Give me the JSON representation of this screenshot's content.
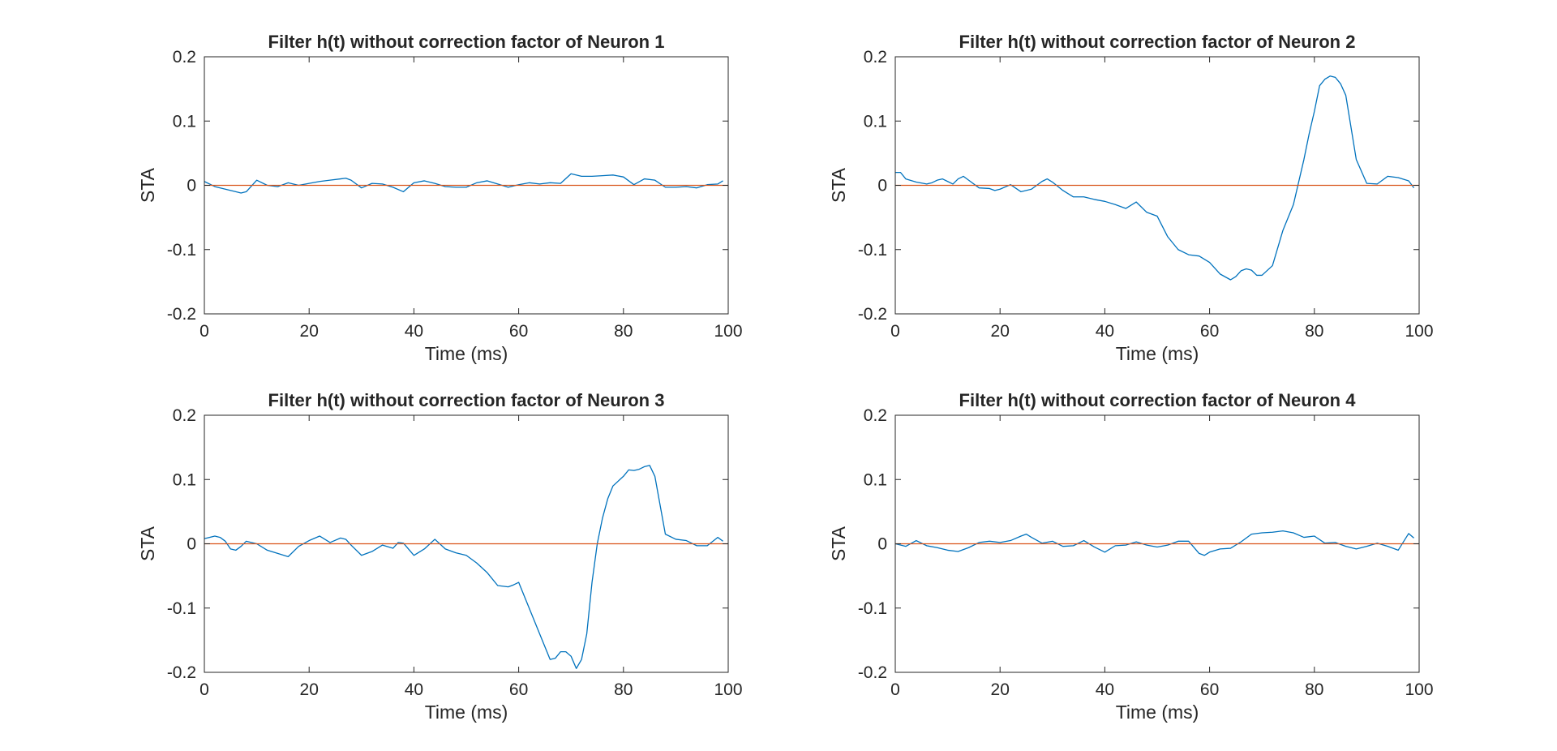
{
  "chart_data": [
    {
      "type": "line",
      "title": "Filter h(t) without correction factor of Neuron 1",
      "xlabel": "Time (ms)",
      "ylabel": "STA",
      "xlim": [
        0,
        100
      ],
      "ylim": [
        -0.2,
        0.2
      ],
      "xticks": [
        "0",
        "20",
        "40",
        "60",
        "80",
        "100"
      ],
      "yticks": [
        "0.2",
        "0.1",
        "0",
        "-0.1",
        "-0.2"
      ],
      "grid": false,
      "series": [
        {
          "color": "#0072BD",
          "x": [
            0,
            2,
            4,
            6,
            7,
            8,
            10,
            12,
            14,
            16,
            18,
            20,
            22,
            24,
            26,
            27,
            28,
            30,
            32,
            34,
            36,
            38,
            40,
            42,
            44,
            46,
            48,
            50,
            52,
            54,
            56,
            58,
            60,
            62,
            64,
            66,
            68,
            70,
            72,
            74,
            76,
            78,
            80,
            82,
            84,
            86,
            88,
            90,
            92,
            94,
            96,
            98,
            99
          ],
          "y": [
            0.006,
            -0.002,
            -0.006,
            -0.01,
            -0.012,
            -0.01,
            0.008,
            0.0,
            -0.002,
            0.004,
            0.0,
            0.003,
            0.006,
            0.008,
            0.01,
            0.011,
            0.008,
            -0.004,
            0.003,
            0.002,
            -0.003,
            -0.01,
            0.004,
            0.007,
            0.003,
            -0.002,
            -0.003,
            -0.003,
            0.004,
            0.007,
            0.002,
            -0.003,
            0.001,
            0.004,
            0.002,
            0.004,
            0.003,
            0.018,
            0.014,
            0.014,
            0.015,
            0.016,
            0.013,
            0.001,
            0.01,
            0.008,
            -0.003,
            -0.003,
            -0.002,
            -0.004,
            0.001,
            0.002,
            0.007
          ]
        },
        {
          "color": "#D95319",
          "x": [
            0,
            100
          ],
          "y": [
            0,
            0
          ]
        }
      ]
    },
    {
      "type": "line",
      "title": "Filter h(t) without correction factor of Neuron 2",
      "xlabel": "Time (ms)",
      "ylabel": "STA",
      "xlim": [
        0,
        100
      ],
      "ylim": [
        -0.2,
        0.2
      ],
      "xticks": [
        "0",
        "20",
        "40",
        "60",
        "80",
        "100"
      ],
      "yticks": [
        "0.2",
        "0.1",
        "0",
        "-0.1",
        "-0.2"
      ],
      "grid": false,
      "series": [
        {
          "color": "#0072BD",
          "x": [
            0,
            1,
            2,
            4,
            6,
            7,
            8,
            9,
            10,
            11,
            12,
            13,
            14,
            16,
            18,
            19,
            20,
            22,
            24,
            26,
            28,
            29,
            30,
            32,
            34,
            36,
            38,
            40,
            42,
            44,
            46,
            48,
            50,
            52,
            54,
            56,
            58,
            60,
            62,
            64,
            65,
            66,
            67,
            68,
            69,
            70,
            72,
            74,
            76,
            78,
            79,
            80,
            81,
            82,
            83,
            84,
            85,
            86,
            88,
            90,
            92,
            94,
            96,
            98,
            99
          ],
          "y": [
            0.02,
            0.02,
            0.01,
            0.005,
            0.002,
            0.004,
            0.008,
            0.01,
            0.006,
            0.002,
            0.01,
            0.014,
            0.008,
            -0.004,
            -0.005,
            -0.008,
            -0.006,
            0.001,
            -0.01,
            -0.006,
            0.006,
            0.01,
            0.005,
            -0.008,
            -0.018,
            -0.018,
            -0.022,
            -0.025,
            -0.03,
            -0.036,
            -0.026,
            -0.042,
            -0.048,
            -0.08,
            -0.1,
            -0.108,
            -0.11,
            -0.12,
            -0.138,
            -0.147,
            -0.142,
            -0.133,
            -0.13,
            -0.132,
            -0.14,
            -0.14,
            -0.125,
            -0.07,
            -0.03,
            0.04,
            0.08,
            0.115,
            0.155,
            0.165,
            0.17,
            0.168,
            0.158,
            0.14,
            0.04,
            0.003,
            0.002,
            0.014,
            0.012,
            0.007,
            -0.004
          ]
        },
        {
          "color": "#D95319",
          "x": [
            0,
            100
          ],
          "y": [
            0,
            0
          ]
        }
      ]
    },
    {
      "type": "line",
      "title": "Filter h(t) without correction factor of Neuron 3",
      "xlabel": "Time (ms)",
      "ylabel": "STA",
      "xlim": [
        0,
        100
      ],
      "ylim": [
        -0.2,
        0.2
      ],
      "xticks": [
        "0",
        "20",
        "40",
        "60",
        "80",
        "100"
      ],
      "yticks": [
        "0.2",
        "0.1",
        "0",
        "-0.1",
        "-0.2"
      ],
      "grid": false,
      "series": [
        {
          "color": "#0072BD",
          "x": [
            0,
            2,
            3,
            4,
            5,
            6,
            7,
            8,
            10,
            12,
            14,
            16,
            18,
            20,
            22,
            24,
            26,
            27,
            28,
            30,
            32,
            34,
            36,
            37,
            38,
            40,
            42,
            44,
            46,
            48,
            50,
            52,
            54,
            56,
            58,
            59,
            60,
            62,
            64,
            66,
            67,
            68,
            69,
            70,
            71,
            72,
            73,
            74,
            75,
            76,
            77,
            78,
            80,
            81,
            82,
            83,
            84,
            85,
            86,
            88,
            90,
            92,
            94,
            96,
            98,
            99
          ],
          "y": [
            0.008,
            0.012,
            0.01,
            0.004,
            -0.008,
            -0.01,
            -0.004,
            0.004,
            0.0,
            -0.01,
            -0.015,
            -0.02,
            -0.004,
            0.005,
            0.012,
            0.002,
            0.009,
            0.007,
            -0.002,
            -0.018,
            -0.012,
            -0.002,
            -0.007,
            0.002,
            0.001,
            -0.018,
            -0.008,
            0.007,
            -0.008,
            -0.014,
            -0.018,
            -0.03,
            -0.045,
            -0.065,
            -0.067,
            -0.064,
            -0.06,
            -0.1,
            -0.14,
            -0.18,
            -0.178,
            -0.168,
            -0.168,
            -0.175,
            -0.194,
            -0.18,
            -0.14,
            -0.06,
            0.0,
            0.04,
            0.07,
            0.09,
            0.105,
            0.115,
            0.114,
            0.116,
            0.12,
            0.122,
            0.105,
            0.015,
            0.007,
            0.005,
            -0.003,
            -0.003,
            0.01,
            0.004
          ]
        },
        {
          "color": "#D95319",
          "x": [
            0,
            100
          ],
          "y": [
            0,
            0
          ]
        }
      ]
    },
    {
      "type": "line",
      "title": "Filter h(t) without correction factor of Neuron 4",
      "xlabel": "Time (ms)",
      "ylabel": "STA",
      "xlim": [
        0,
        100
      ],
      "ylim": [
        -0.2,
        0.2
      ],
      "xticks": [
        "0",
        "20",
        "40",
        "60",
        "80",
        "100"
      ],
      "yticks": [
        "0.2",
        "0.1",
        "0",
        "-0.1",
        "-0.2"
      ],
      "grid": false,
      "series": [
        {
          "color": "#0072BD",
          "x": [
            0,
            2,
            4,
            6,
            8,
            10,
            12,
            14,
            16,
            18,
            20,
            22,
            24,
            25,
            26,
            28,
            30,
            32,
            34,
            36,
            38,
            40,
            42,
            44,
            46,
            48,
            50,
            52,
            54,
            56,
            58,
            59,
            60,
            62,
            64,
            66,
            68,
            70,
            72,
            74,
            76,
            78,
            80,
            82,
            84,
            86,
            88,
            90,
            92,
            94,
            96,
            98,
            99
          ],
          "y": [
            0.0,
            -0.004,
            0.005,
            -0.003,
            -0.006,
            -0.01,
            -0.012,
            -0.006,
            0.002,
            0.004,
            0.002,
            0.005,
            0.012,
            0.015,
            0.01,
            0.001,
            0.004,
            -0.004,
            -0.003,
            0.005,
            -0.005,
            -0.013,
            -0.003,
            -0.002,
            0.003,
            -0.002,
            -0.005,
            -0.002,
            0.004,
            0.004,
            -0.015,
            -0.018,
            -0.013,
            -0.008,
            -0.007,
            0.003,
            0.015,
            0.017,
            0.018,
            0.02,
            0.017,
            0.01,
            0.012,
            0.001,
            0.002,
            -0.004,
            -0.008,
            -0.004,
            0.001,
            -0.004,
            -0.01,
            0.016,
            0.009
          ]
        },
        {
          "color": "#D95319",
          "x": [
            0,
            100
          ],
          "y": [
            0,
            0
          ]
        }
      ]
    }
  ]
}
